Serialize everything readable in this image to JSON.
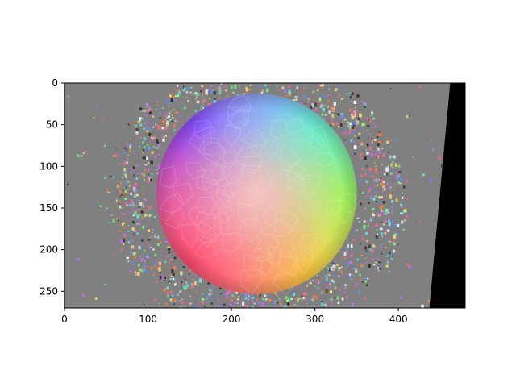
{
  "chart_data": {
    "type": "heatmap",
    "title": "",
    "xlabel": "",
    "ylabel": "",
    "xlim": [
      0,
      480
    ],
    "ylim": [
      270,
      0
    ],
    "x_ticks": [
      0,
      100,
      200,
      300,
      400
    ],
    "y_ticks": [
      0,
      50,
      100,
      150,
      200,
      250
    ],
    "image": {
      "description_kind": "surface-normal map",
      "background_color": "#808080",
      "masked_region_color": "#000000",
      "sphere": {
        "center": [
          230,
          133
        ],
        "radius": 120
      },
      "masked_region_polygon": [
        [
          462,
          0
        ],
        [
          480,
          0
        ],
        [
          480,
          270
        ],
        [
          437,
          270
        ]
      ]
    }
  }
}
